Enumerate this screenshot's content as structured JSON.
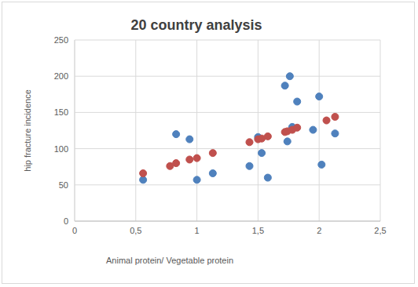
{
  "chart_data": {
    "type": "scatter",
    "title": "20 country analysis",
    "x_label": "Animal protein/ Vegetable protein",
    "y_label": "hip fracture incidence",
    "xlim": [
      0,
      2.5
    ],
    "xticks": [
      0,
      {
        "value": 0.5,
        "label": "0,5"
      },
      1,
      {
        "value": 1.5,
        "label": "1,5"
      },
      2,
      {
        "value": 2.5,
        "label": "2,5"
      }
    ],
    "ylim": [
      0,
      250
    ],
    "yticks": [
      0,
      50,
      100,
      150,
      200,
      250
    ],
    "grid": true,
    "series": [
      {
        "color": "#4f81bd",
        "marker": "circle",
        "x": [
          0.56,
          0.83,
          0.94,
          1.0,
          1.13,
          1.43,
          1.5,
          1.53,
          1.58,
          1.72,
          1.74,
          1.76,
          1.78,
          1.82,
          1.95,
          2.0,
          2.02,
          2.13
        ],
        "values": [
          57,
          120,
          113,
          57,
          66,
          76,
          116,
          94,
          60,
          187,
          110,
          200,
          130,
          165,
          126,
          172,
          78,
          121
        ]
      },
      {
        "color": "#c0504d",
        "marker": "circle",
        "x": [
          0.56,
          0.78,
          0.83,
          0.94,
          1.0,
          1.13,
          1.43,
          1.5,
          1.53,
          1.58,
          1.72,
          1.74,
          1.78,
          1.82,
          2.06,
          2.13
        ],
        "values": [
          66,
          76,
          80,
          85,
          87,
          94,
          109,
          113,
          114,
          117,
          123,
          124,
          126,
          129,
          139,
          144
        ]
      }
    ]
  }
}
